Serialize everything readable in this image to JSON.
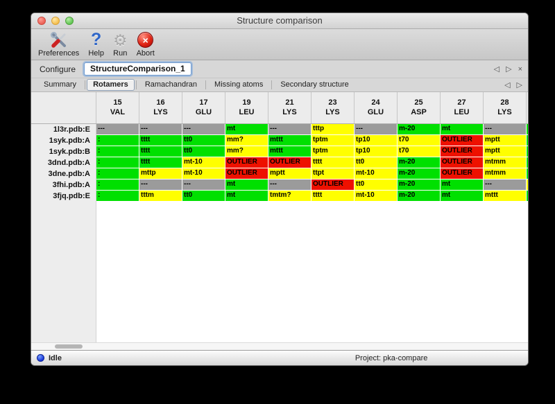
{
  "window": {
    "title": "Structure comparison"
  },
  "toolbar": {
    "items": [
      {
        "label": "Preferences",
        "icon": "tools-icon"
      },
      {
        "label": "Help",
        "icon": "question-mark-icon"
      },
      {
        "label": "Run",
        "icon": "gear-icon"
      },
      {
        "label": "Abort",
        "icon": "abort-icon"
      }
    ]
  },
  "configure": {
    "label": "Configure",
    "value": "StructureComparison_1"
  },
  "pager": {
    "back": "◁",
    "forward": "▷",
    "close": "×"
  },
  "tabs": [
    {
      "label": "Summary",
      "active": false
    },
    {
      "label": "Rotamers",
      "active": true
    },
    {
      "label": "Ramachandran",
      "active": false
    },
    {
      "label": "Missing atoms",
      "active": false
    },
    {
      "label": "Secondary structure",
      "active": false
    }
  ],
  "cell_colors": {
    "green": "#00e000",
    "yellow": "#ffff00",
    "red": "#ee1100",
    "gray": "#9b9b9b"
  },
  "table": {
    "columns": [
      {
        "num": "15",
        "res": "VAL"
      },
      {
        "num": "16",
        "res": "LYS"
      },
      {
        "num": "17",
        "res": "GLU"
      },
      {
        "num": "19",
        "res": "LEU"
      },
      {
        "num": "21",
        "res": "LYS"
      },
      {
        "num": "23",
        "res": "LYS"
      },
      {
        "num": "24",
        "res": "GLU"
      },
      {
        "num": "25",
        "res": "ASP"
      },
      {
        "num": "27",
        "res": "LEU"
      },
      {
        "num": "28",
        "res": "LYS"
      }
    ],
    "rows": [
      {
        "label": "1l3r.pdb:E",
        "cells": [
          {
            "text": "---",
            "color": "gray"
          },
          {
            "text": "---",
            "color": "gray"
          },
          {
            "text": "---",
            "color": "gray"
          },
          {
            "text": "mt",
            "color": "green"
          },
          {
            "text": "---",
            "color": "gray"
          },
          {
            "text": "tttp",
            "color": "yellow"
          },
          {
            "text": "---",
            "color": "gray"
          },
          {
            "text": "m-20",
            "color": "green"
          },
          {
            "text": "mt",
            "color": "green"
          },
          {
            "text": "---",
            "color": "gray"
          }
        ]
      },
      {
        "label": "1syk.pdb:A",
        "cells": [
          {
            "text": ":",
            "color": "green"
          },
          {
            "text": "tttt",
            "color": "green"
          },
          {
            "text": "tt0",
            "color": "green"
          },
          {
            "text": "mm?",
            "color": "yellow"
          },
          {
            "text": "mttt",
            "color": "green"
          },
          {
            "text": "tptm",
            "color": "yellow"
          },
          {
            "text": "tp10",
            "color": "yellow"
          },
          {
            "text": "t70",
            "color": "yellow"
          },
          {
            "text": "OUTLIER",
            "color": "red"
          },
          {
            "text": "mptt",
            "color": "yellow"
          }
        ]
      },
      {
        "label": "1syk.pdb:B",
        "cells": [
          {
            "text": ":",
            "color": "green"
          },
          {
            "text": "tttt",
            "color": "green"
          },
          {
            "text": "tt0",
            "color": "green"
          },
          {
            "text": "mm?",
            "color": "yellow"
          },
          {
            "text": "mttt",
            "color": "green"
          },
          {
            "text": "tptm",
            "color": "yellow"
          },
          {
            "text": "tp10",
            "color": "yellow"
          },
          {
            "text": "t70",
            "color": "yellow"
          },
          {
            "text": "OUTLIER",
            "color": "red"
          },
          {
            "text": "mptt",
            "color": "yellow"
          }
        ]
      },
      {
        "label": "3dnd.pdb:A",
        "cells": [
          {
            "text": ":",
            "color": "green"
          },
          {
            "text": "tttt",
            "color": "green"
          },
          {
            "text": "mt-10",
            "color": "yellow"
          },
          {
            "text": "OUTLIER",
            "color": "red"
          },
          {
            "text": "OUTLIER",
            "color": "red"
          },
          {
            "text": "tttt",
            "color": "yellow"
          },
          {
            "text": "tt0",
            "color": "yellow"
          },
          {
            "text": "m-20",
            "color": "green"
          },
          {
            "text": "OUTLIER",
            "color": "red"
          },
          {
            "text": "mtmm",
            "color": "yellow"
          }
        ]
      },
      {
        "label": "3dne.pdb:A",
        "cells": [
          {
            "text": ":",
            "color": "green"
          },
          {
            "text": "mttp",
            "color": "yellow"
          },
          {
            "text": "mt-10",
            "color": "yellow"
          },
          {
            "text": "OUTLIER",
            "color": "red"
          },
          {
            "text": "mptt",
            "color": "yellow"
          },
          {
            "text": "ttpt",
            "color": "yellow"
          },
          {
            "text": "mt-10",
            "color": "yellow"
          },
          {
            "text": "m-20",
            "color": "green"
          },
          {
            "text": "OUTLIER",
            "color": "red"
          },
          {
            "text": "mtmm",
            "color": "yellow"
          }
        ]
      },
      {
        "label": "3fhi.pdb:A",
        "cells": [
          {
            "text": ":",
            "color": "green"
          },
          {
            "text": "---",
            "color": "gray"
          },
          {
            "text": "---",
            "color": "gray"
          },
          {
            "text": "mt",
            "color": "green"
          },
          {
            "text": "---",
            "color": "gray"
          },
          {
            "text": "OUTLIER",
            "color": "red"
          },
          {
            "text": "tt0",
            "color": "yellow"
          },
          {
            "text": "m-20",
            "color": "green"
          },
          {
            "text": "mt",
            "color": "green"
          },
          {
            "text": "---",
            "color": "gray"
          }
        ]
      },
      {
        "label": "3fjq.pdb:E",
        "cells": [
          {
            "text": ":",
            "color": "green"
          },
          {
            "text": "tttm",
            "color": "yellow"
          },
          {
            "text": "tt0",
            "color": "green"
          },
          {
            "text": "mt",
            "color": "green"
          },
          {
            "text": "tmtm?",
            "color": "yellow"
          },
          {
            "text": "tttt",
            "color": "yellow"
          },
          {
            "text": "mt-10",
            "color": "yellow"
          },
          {
            "text": "m-20",
            "color": "green"
          },
          {
            "text": "mt",
            "color": "green"
          },
          {
            "text": "mttt",
            "color": "yellow"
          }
        ]
      }
    ],
    "overflow_col": [
      "green",
      "green",
      "green",
      "green",
      "green",
      "yellow",
      "green"
    ]
  },
  "statusbar": {
    "status": "Idle",
    "project": "Project: pka-compare"
  }
}
